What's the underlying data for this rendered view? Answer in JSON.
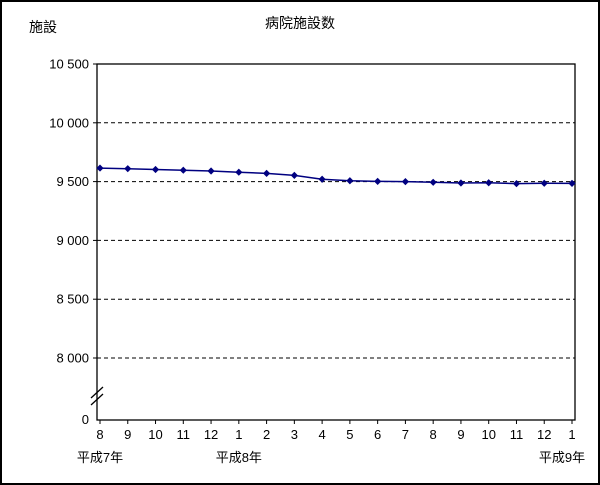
{
  "window": {
    "background": "#ffffff",
    "border_color": "#000000"
  },
  "chart_data": {
    "type": "line",
    "title": "病院施設数",
    "ylabel": "施設",
    "series_name": "病院施設数",
    "categories": [
      "8",
      "9",
      "10",
      "11",
      "12",
      "1",
      "2",
      "3",
      "4",
      "5",
      "6",
      "7",
      "8",
      "9",
      "10",
      "11",
      "12",
      "1"
    ],
    "values": [
      9615,
      9610,
      9603,
      9597,
      9590,
      9580,
      9570,
      9553,
      9520,
      9507,
      9502,
      9500,
      9494,
      9488,
      9490,
      9483,
      9486,
      9485
    ],
    "x_group_labels": [
      {
        "label": "平成7年",
        "index": 0
      },
      {
        "label": "平成8年",
        "index": 5
      },
      {
        "label": "平成9年",
        "index": 17
      }
    ],
    "y_ticks": [
      8000,
      8500,
      9000,
      9500,
      10000,
      10500
    ],
    "y_tick_labels": [
      "8 000",
      "8 500",
      "9 000",
      "9 500",
      "10 000",
      "10 500"
    ],
    "y_zero_label": "0",
    "ylim": [
      8000,
      10500
    ],
    "axis_break_to_zero": true,
    "grid": "dashed-horizontal",
    "legend": "none",
    "line_color": "#000080",
    "marker": "diamond"
  }
}
